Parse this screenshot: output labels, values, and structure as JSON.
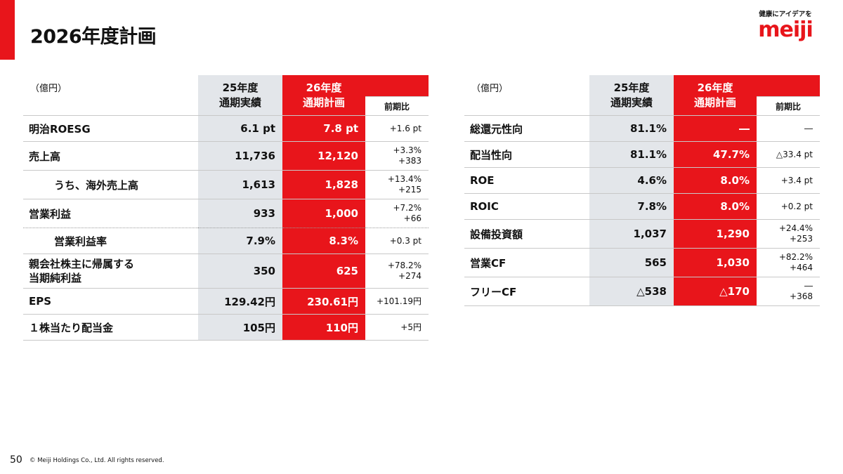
{
  "header": {
    "title": "2026年度計画"
  },
  "logo": {
    "tagline": "健康にアイデアを",
    "wordmark": "meiji",
    "brand_color": "#e8151b"
  },
  "left_table": {
    "unit": "（億円）",
    "col_fy25": [
      "25年度",
      "通期実績"
    ],
    "col_fy26": [
      "26年度",
      "通期計画"
    ],
    "col_yoy": "前期比",
    "rows": [
      {
        "label": "明治ROESG",
        "fy25": "6.1 pt",
        "fy26": "7.8 pt",
        "yoy": [
          "+1.6 pt"
        ]
      },
      {
        "label": "売上高",
        "fy25": "11,736",
        "fy26": "12,120",
        "yoy": [
          "+3.3%",
          "+383"
        ]
      },
      {
        "label": "うち、海外売上高",
        "fy25": "1,613",
        "fy26": "1,828",
        "yoy": [
          "+13.4%",
          "+215"
        ]
      },
      {
        "label": "営業利益",
        "fy25": "933",
        "fy26": "1,000",
        "yoy": [
          "+7.2%",
          "+66"
        ]
      },
      {
        "label": "営業利益率",
        "fy25": "7.9%",
        "fy26": "8.3%",
        "yoy": [
          "+0.3 pt"
        ]
      },
      {
        "label": [
          "親会社株主に帰属する",
          "当期純利益"
        ],
        "fy25": "350",
        "fy26": "625",
        "yoy": [
          "+78.2%",
          "+274"
        ]
      },
      {
        "label": "EPS",
        "fy25": "129.42円",
        "fy26": "230.61円",
        "yoy": [
          "+101.19円"
        ]
      },
      {
        "label": "１株当たり配当金",
        "fy25": "105円",
        "fy26": "110円",
        "yoy": [
          "+5円"
        ]
      }
    ]
  },
  "right_table": {
    "unit": "（億円）",
    "col_fy25": [
      "25年度",
      "通期実績"
    ],
    "col_fy26": [
      "26年度",
      "通期計画"
    ],
    "col_yoy": "前期比",
    "rows": [
      {
        "label": "総還元性向",
        "fy25": "81.1%",
        "fy26": "―",
        "yoy": [
          "―"
        ]
      },
      {
        "label": "配当性向",
        "fy25": "81.1%",
        "fy26": "47.7%",
        "yoy": [
          "△33.4 pt"
        ]
      },
      {
        "label": "ROE",
        "fy25": "4.6%",
        "fy26": "8.0%",
        "yoy": [
          "+3.4 pt"
        ]
      },
      {
        "label": "ROIC",
        "fy25": "7.8%",
        "fy26": "8.0%",
        "yoy": [
          "+0.2 pt"
        ]
      },
      {
        "label": "設備投資額",
        "fy25": "1,037",
        "fy26": "1,290",
        "yoy": [
          "+24.4%",
          "+253"
        ]
      },
      {
        "label": "営業CF",
        "fy25": "565",
        "fy26": "1,030",
        "yoy": [
          "+82.2%",
          "+464"
        ]
      },
      {
        "label": "フリーCF",
        "fy25": "△538",
        "fy26": "△170",
        "yoy": [
          "―",
          "+368"
        ]
      }
    ]
  },
  "footer": {
    "page_number": "50",
    "copyright": "© Meiji Holdings Co., Ltd. All rights reserved."
  }
}
